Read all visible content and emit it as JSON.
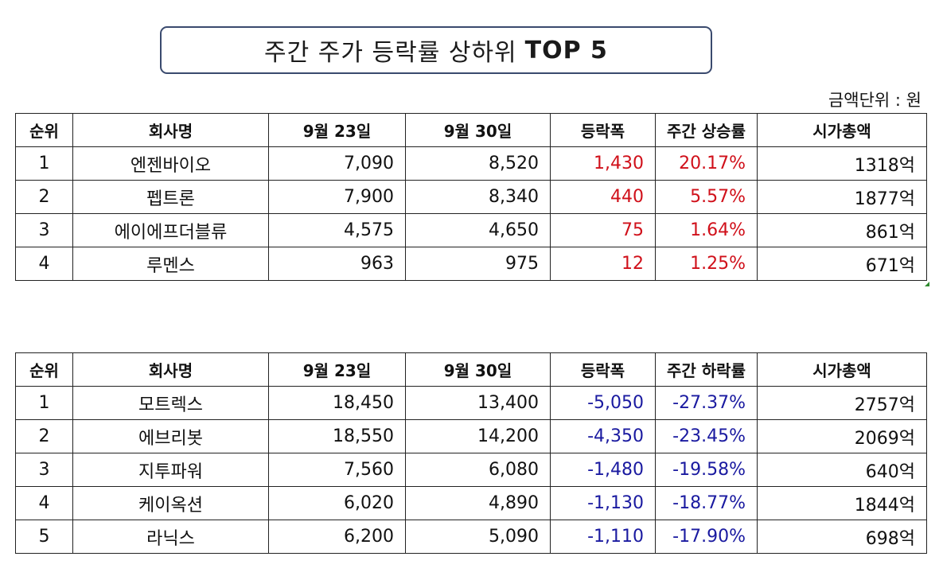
{
  "title": {
    "main": "주간 주가 등락률 상하위",
    "highlight": "TOP 5"
  },
  "unit_note": "금액단위 : 원",
  "top_table": {
    "headers": [
      "순위",
      "회사명",
      "9월 23일",
      "9월 30일",
      "등락폭",
      "주간 상승률",
      "시가총액"
    ],
    "rows": [
      {
        "rank": "1",
        "company": "엔젠바이오",
        "sep23": "7,090",
        "sep30": "8,520",
        "change": "1,430",
        "rate": "20.17%",
        "cap": "1318억"
      },
      {
        "rank": "2",
        "company": "펩트론",
        "sep23": "7,900",
        "sep30": "8,340",
        "change": "440",
        "rate": "5.57%",
        "cap": "1877억"
      },
      {
        "rank": "3",
        "company": "에이에프더블류",
        "sep23": "4,575",
        "sep30": "4,650",
        "change": "75",
        "rate": "1.64%",
        "cap": "861억"
      },
      {
        "rank": "4",
        "company": "루멘스",
        "sep23": "963",
        "sep30": "975",
        "change": "12",
        "rate": "1.25%",
        "cap": "671억"
      }
    ]
  },
  "bottom_table": {
    "headers": [
      "순위",
      "회사명",
      "9월 23일",
      "9월 30일",
      "등락폭",
      "주간 하락률",
      "시가총액"
    ],
    "rows": [
      {
        "rank": "1",
        "company": "모트렉스",
        "sep23": "18,450",
        "sep30": "13,400",
        "change": "-5,050",
        "rate": "-27.37%",
        "cap": "2757억"
      },
      {
        "rank": "2",
        "company": "에브리봇",
        "sep23": "18,550",
        "sep30": "14,200",
        "change": "-4,350",
        "rate": "-23.45%",
        "cap": "2069억"
      },
      {
        "rank": "3",
        "company": "지투파워",
        "sep23": "7,560",
        "sep30": "6,080",
        "change": "-1,480",
        "rate": "-19.58%",
        "cap": "640억"
      },
      {
        "rank": "4",
        "company": "케이옥션",
        "sep23": "6,020",
        "sep30": "4,890",
        "change": "-1,130",
        "rate": "-18.77%",
        "cap": "1844억"
      },
      {
        "rank": "5",
        "company": "라닉스",
        "sep23": "6,200",
        "sep30": "5,090",
        "change": "-1,110",
        "rate": "-17.90%",
        "cap": "698억"
      }
    ]
  },
  "colors": {
    "rise": "#d0101a",
    "fall": "#1a1aa0",
    "title_border": "#3a4a6e"
  }
}
